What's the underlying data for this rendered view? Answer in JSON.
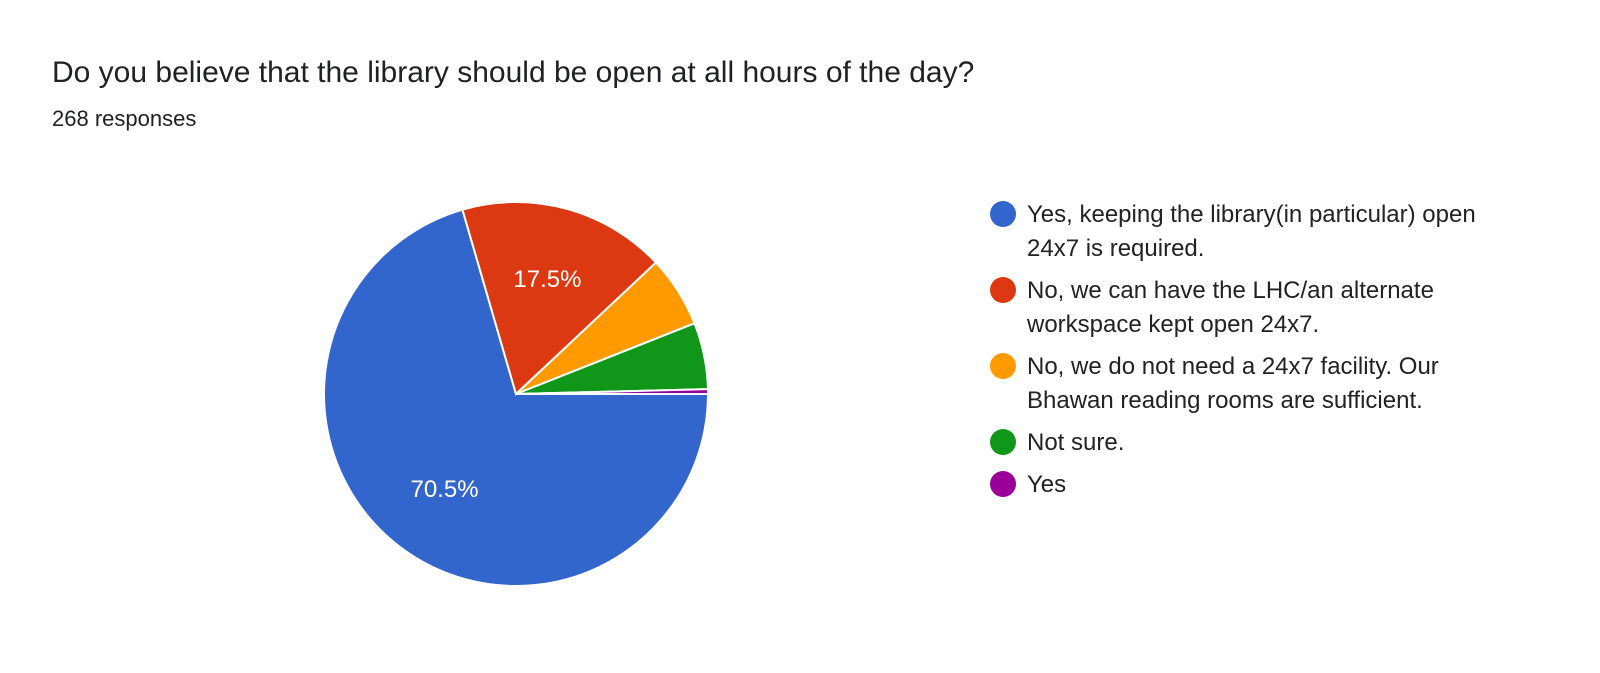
{
  "header": {
    "title": "Do you believe that the library should be open at all hours of the day?",
    "subtitle": "268 responses"
  },
  "chart_data": {
    "type": "pie",
    "title": "Do you believe that the library should be open at all hours of the day?",
    "total_responses": 268,
    "legend_position": "right",
    "slices": [
      {
        "label": "Yes, keeping the library(in particular) open 24x7 is required.",
        "value": 70.5,
        "count": 189,
        "color": "#3366cc",
        "data_label": "70.5%"
      },
      {
        "label": "No, we can have the LHC/an alternate workspace kept open 24x7.",
        "value": 17.5,
        "count": 47,
        "color": "#dc3912",
        "data_label": "17.5%"
      },
      {
        "label": "No, we do not need a 24x7 facility. Our Bhawan reading rooms are sufficient.",
        "value": 6.0,
        "count": 16,
        "color": "#ff9900",
        "data_label": ""
      },
      {
        "label": "Not sure.",
        "value": 5.6,
        "count": 15,
        "color": "#109618",
        "data_label": ""
      },
      {
        "label": "Yes",
        "value": 0.4,
        "count": 1,
        "color": "#990099",
        "data_label": ""
      }
    ]
  }
}
